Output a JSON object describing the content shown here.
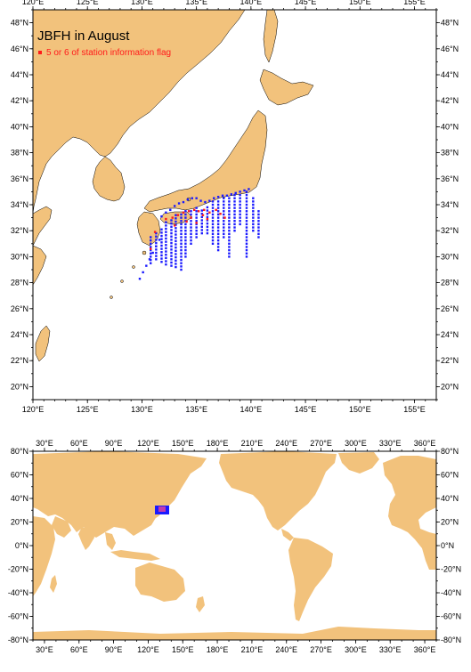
{
  "colors": {
    "land": "#f2c27c",
    "ocean": "#ffffff",
    "station": "#1a1aff",
    "flag": "#ff1a1a"
  },
  "regional_map": {
    "title": "JBFH in August",
    "legend_flag": "5 or 6 of station information flag",
    "lon_range": [
      120,
      157
    ],
    "lat_range": [
      19,
      49
    ],
    "lon_ticks": [
      120,
      125,
      130,
      135,
      140,
      145,
      150,
      155
    ],
    "lon_tick_labels": [
      "120°E",
      "125°E",
      "130°E",
      "135°E",
      "140°E",
      "145°E",
      "150°E",
      "155°E"
    ],
    "lat_ticks": [
      20,
      22,
      24,
      26,
      28,
      30,
      32,
      34,
      36,
      38,
      40,
      42,
      44,
      46,
      48
    ],
    "lat_tick_labels": [
      "20°N",
      "22°N",
      "24°N",
      "26°N",
      "28°N",
      "30°N",
      "32°N",
      "34°N",
      "36°N",
      "38°N",
      "40°N",
      "42°N",
      "44°N",
      "46°N",
      "48°N"
    ]
  },
  "global_map": {
    "lon_range": [
      20,
      370
    ],
    "lat_range": [
      -80,
      80
    ],
    "lon_ticks": [
      30,
      60,
      90,
      120,
      150,
      180,
      210,
      240,
      270,
      300,
      330,
      360
    ],
    "lon_tick_labels": [
      "30°E",
      "60°E",
      "90°E",
      "120°E",
      "150°E",
      "180°E",
      "210°E",
      "240°E",
      "270°E",
      "300°E",
      "330°E",
      "360°E"
    ],
    "lat_ticks": [
      -80,
      -60,
      -40,
      -20,
      0,
      20,
      40,
      60,
      80
    ],
    "lat_tick_labels": [
      "-80°N",
      "-60°N",
      "-40°N",
      "-20°N",
      "0°N",
      "20°N",
      "40°N",
      "60°N",
      "80°N"
    ]
  },
  "stations": {
    "lines": [
      {
        "lon": 130.8,
        "lat_from": 29.5,
        "lat_to": 31.5
      },
      {
        "lon": 131.3,
        "lat_from": 29.8,
        "lat_to": 31.8
      },
      {
        "lon": 131.8,
        "lat_from": 29.6,
        "lat_to": 32.2
      },
      {
        "lon": 132.2,
        "lat_from": 29.4,
        "lat_to": 32.8
      },
      {
        "lon": 132.7,
        "lat_from": 29.3,
        "lat_to": 33.0
      },
      {
        "lon": 133.1,
        "lat_from": 29.2,
        "lat_to": 33.2
      },
      {
        "lon": 133.6,
        "lat_from": 29.0,
        "lat_to": 33.3
      },
      {
        "lon": 134.0,
        "lat_from": 30.0,
        "lat_to": 33.5
      },
      {
        "lon": 134.5,
        "lat_from": 31.0,
        "lat_to": 33.6
      },
      {
        "lon": 135.0,
        "lat_from": 31.5,
        "lat_to": 33.8
      },
      {
        "lon": 135.5,
        "lat_from": 31.8,
        "lat_to": 33.7
      },
      {
        "lon": 136.0,
        "lat_from": 31.8,
        "lat_to": 34.0
      },
      {
        "lon": 136.5,
        "lat_from": 31.0,
        "lat_to": 34.3
      },
      {
        "lon": 137.0,
        "lat_from": 30.5,
        "lat_to": 34.4
      },
      {
        "lon": 137.5,
        "lat_from": 31.5,
        "lat_to": 34.6
      },
      {
        "lon": 138.0,
        "lat_from": 30.0,
        "lat_to": 34.7
      },
      {
        "lon": 138.5,
        "lat_from": 32.0,
        "lat_to": 34.8
      },
      {
        "lon": 139.0,
        "lat_from": 32.5,
        "lat_to": 34.9
      },
      {
        "lon": 139.6,
        "lat_from": 30.0,
        "lat_to": 35.0
      },
      {
        "lon": 140.2,
        "lat_from": 32.0,
        "lat_to": 34.6
      },
      {
        "lon": 140.7,
        "lat_from": 31.5,
        "lat_to": 33.5
      }
    ],
    "diagonal": [
      [
        129.8,
        28.3
      ],
      [
        130.1,
        28.8
      ],
      [
        130.4,
        29.3
      ],
      [
        130.7,
        29.8
      ],
      [
        131.0,
        30.3
      ],
      [
        131.3,
        30.8
      ],
      [
        131.6,
        31.3
      ]
    ],
    "coast": [
      [
        131.8,
        33.1
      ],
      [
        132.2,
        33.4
      ],
      [
        132.6,
        33.6
      ],
      [
        133.0,
        33.9
      ],
      [
        133.4,
        34.1
      ],
      [
        133.8,
        34.2
      ],
      [
        134.2,
        34.4
      ],
      [
        134.6,
        34.5
      ],
      [
        135.0,
        34.5
      ],
      [
        135.4,
        34.3
      ],
      [
        135.8,
        34.2
      ],
      [
        136.2,
        34.3
      ],
      [
        136.6,
        34.5
      ],
      [
        137.0,
        34.6
      ],
      [
        137.4,
        34.7
      ],
      [
        137.8,
        34.7
      ],
      [
        138.2,
        34.8
      ],
      [
        138.6,
        34.9
      ],
      [
        139.0,
        35.0
      ],
      [
        139.4,
        35.1
      ],
      [
        139.8,
        35.2
      ]
    ],
    "flagged": [
      [
        132.2,
        32.9
      ],
      [
        132.8,
        33.0
      ],
      [
        133.3,
        33.2
      ],
      [
        133.8,
        33.4
      ],
      [
        134.3,
        33.5
      ],
      [
        134.8,
        33.6
      ],
      [
        135.2,
        33.5
      ],
      [
        135.7,
        33.6
      ],
      [
        136.2,
        33.4
      ],
      [
        136.8,
        33.6
      ],
      [
        137.2,
        33.3
      ],
      [
        137.6,
        33.0
      ],
      [
        133.0,
        32.4
      ],
      [
        134.1,
        32.7
      ],
      [
        135.0,
        32.6
      ],
      [
        136.0,
        32.9
      ],
      [
        130.8,
        30.6
      ],
      [
        131.2,
        31.9
      ],
      [
        134.5,
        33.0
      ],
      [
        135.6,
        33.2
      ]
    ]
  }
}
